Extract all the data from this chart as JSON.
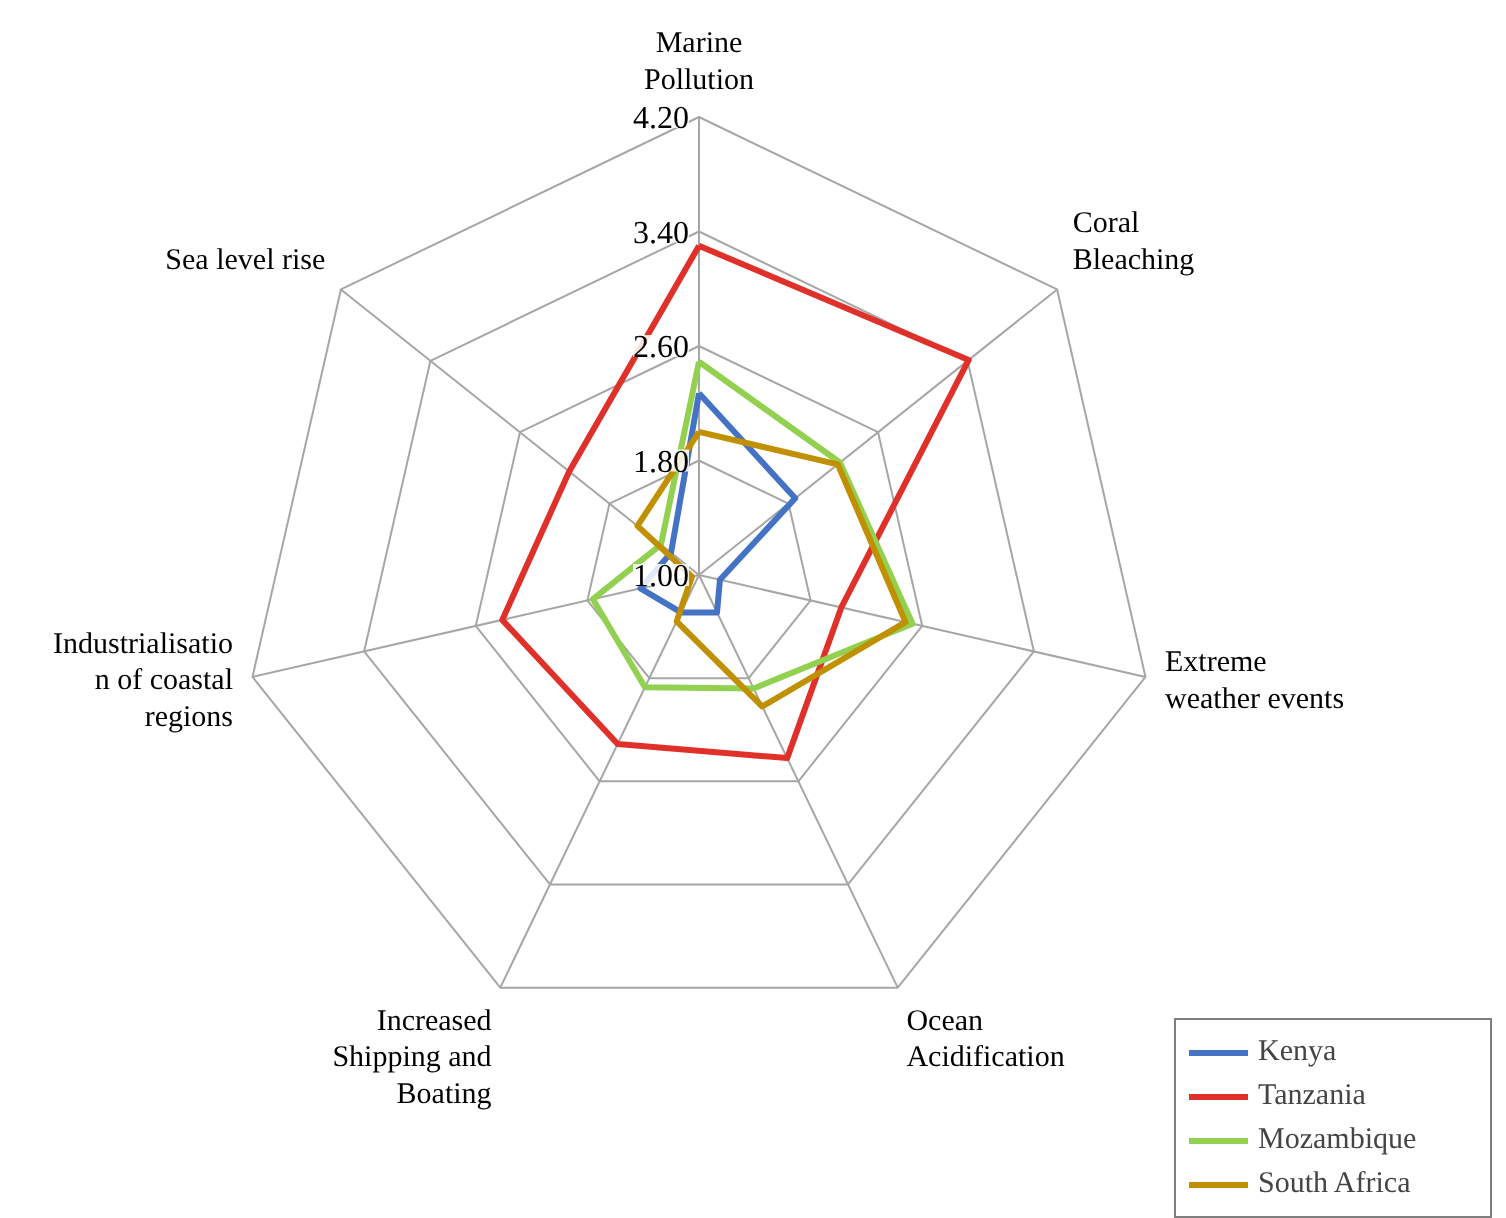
{
  "chart_data": {
    "type": "radar",
    "categories": [
      "Marine\nPollution",
      "Coral\nBleaching",
      "Extreme\nweather events",
      "Ocean\nAcidification",
      "Increased\nShipping and\nBoating",
      "Industrialisatio\nn of coastal\nregions",
      "Sea level rise"
    ],
    "ylim": [
      1.0,
      4.2
    ],
    "yticks": [
      {
        "value": 1.0,
        "label": "1.00"
      },
      {
        "value": 1.8,
        "label": "1.80"
      },
      {
        "value": 2.6,
        "label": "2.60"
      },
      {
        "value": 3.4,
        "label": "3.40"
      },
      {
        "value": 4.2,
        "label": "4.20"
      }
    ],
    "grid": true,
    "legend": "bottom right",
    "series": [
      {
        "name": "Kenya",
        "color": "#4472c4",
        "values": [
          2.27,
          1.86,
          1.15,
          1.29,
          1.29,
          1.42,
          1.25
        ]
      },
      {
        "name": "Tanzania",
        "color": "#e0302a",
        "values": [
          3.3,
          3.41,
          2.02,
          2.42,
          2.31,
          2.41,
          2.16
        ]
      },
      {
        "name": "Mozambique",
        "color": "#92d050",
        "values": [
          2.49,
          2.26,
          2.53,
          1.88,
          1.87,
          1.76,
          1.34
        ]
      },
      {
        "name": "South Africa",
        "color": "#c09000",
        "values": [
          2.0,
          2.24,
          2.48,
          2.02,
          1.36,
          1.05,
          1.55
        ]
      }
    ]
  }
}
